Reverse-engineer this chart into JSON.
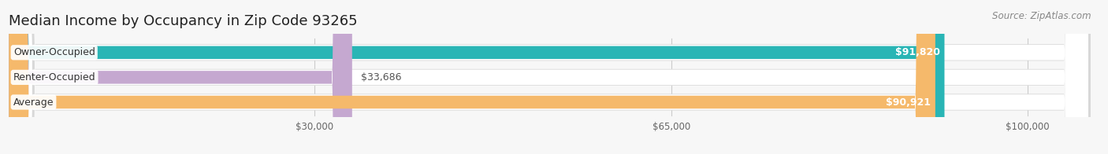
{
  "title": "Median Income by Occupancy in Zip Code 93265",
  "source": "Source: ZipAtlas.com",
  "categories": [
    "Owner-Occupied",
    "Renter-Occupied",
    "Average"
  ],
  "values": [
    91820,
    33686,
    90921
  ],
  "bar_colors": [
    "#29b5b5",
    "#c5a8d0",
    "#f5b96b"
  ],
  "bar_labels": [
    "$91,820",
    "$33,686",
    "$90,921"
  ],
  "x_ticks": [
    30000,
    65000,
    100000
  ],
  "x_tick_labels": [
    "$30,000",
    "$65,000",
    "$100,000"
  ],
  "xlim": [
    0,
    107000
  ],
  "background_color": "#f7f7f7",
  "bar_bg_color": "#e6e6e6",
  "bar_border_color": "#d8d8d8",
  "title_fontsize": 13,
  "source_fontsize": 8.5,
  "label_fontsize": 9,
  "value_fontsize": 9,
  "bar_height": 0.62,
  "tick_fontsize": 8.5
}
